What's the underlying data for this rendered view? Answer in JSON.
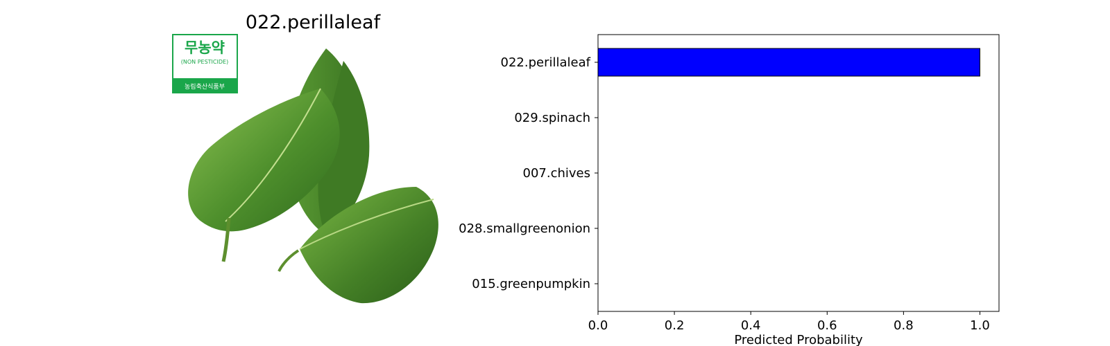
{
  "image_panel": {
    "title": "022.perillaleaf",
    "badge_text_korean": "무농약",
    "badge_text_english": "(NON PESTICIDE)",
    "badge_text_footer": "농림축산식품부",
    "badge_color": "#1aa64a"
  },
  "chart_data": {
    "type": "bar",
    "orientation": "horizontal",
    "categories": [
      "022.perillaleaf",
      "029.spinach",
      "007.chives",
      "028.smallgreenonion",
      "015.greenpumpkin"
    ],
    "values": [
      1.0,
      0.0,
      0.0,
      0.0,
      0.0
    ],
    "xlabel": "Predicted Probability",
    "ylabel": "",
    "xlim": [
      0.0,
      1.05
    ],
    "xticks": [
      0.0,
      0.2,
      0.4,
      0.6,
      0.8,
      1.0
    ],
    "xtick_labels": [
      "0.0",
      "0.2",
      "0.4",
      "0.6",
      "0.8",
      "1.0"
    ],
    "bar_color": "#0000ff",
    "edge_color": "#000000",
    "grid": false,
    "legend": "none"
  }
}
